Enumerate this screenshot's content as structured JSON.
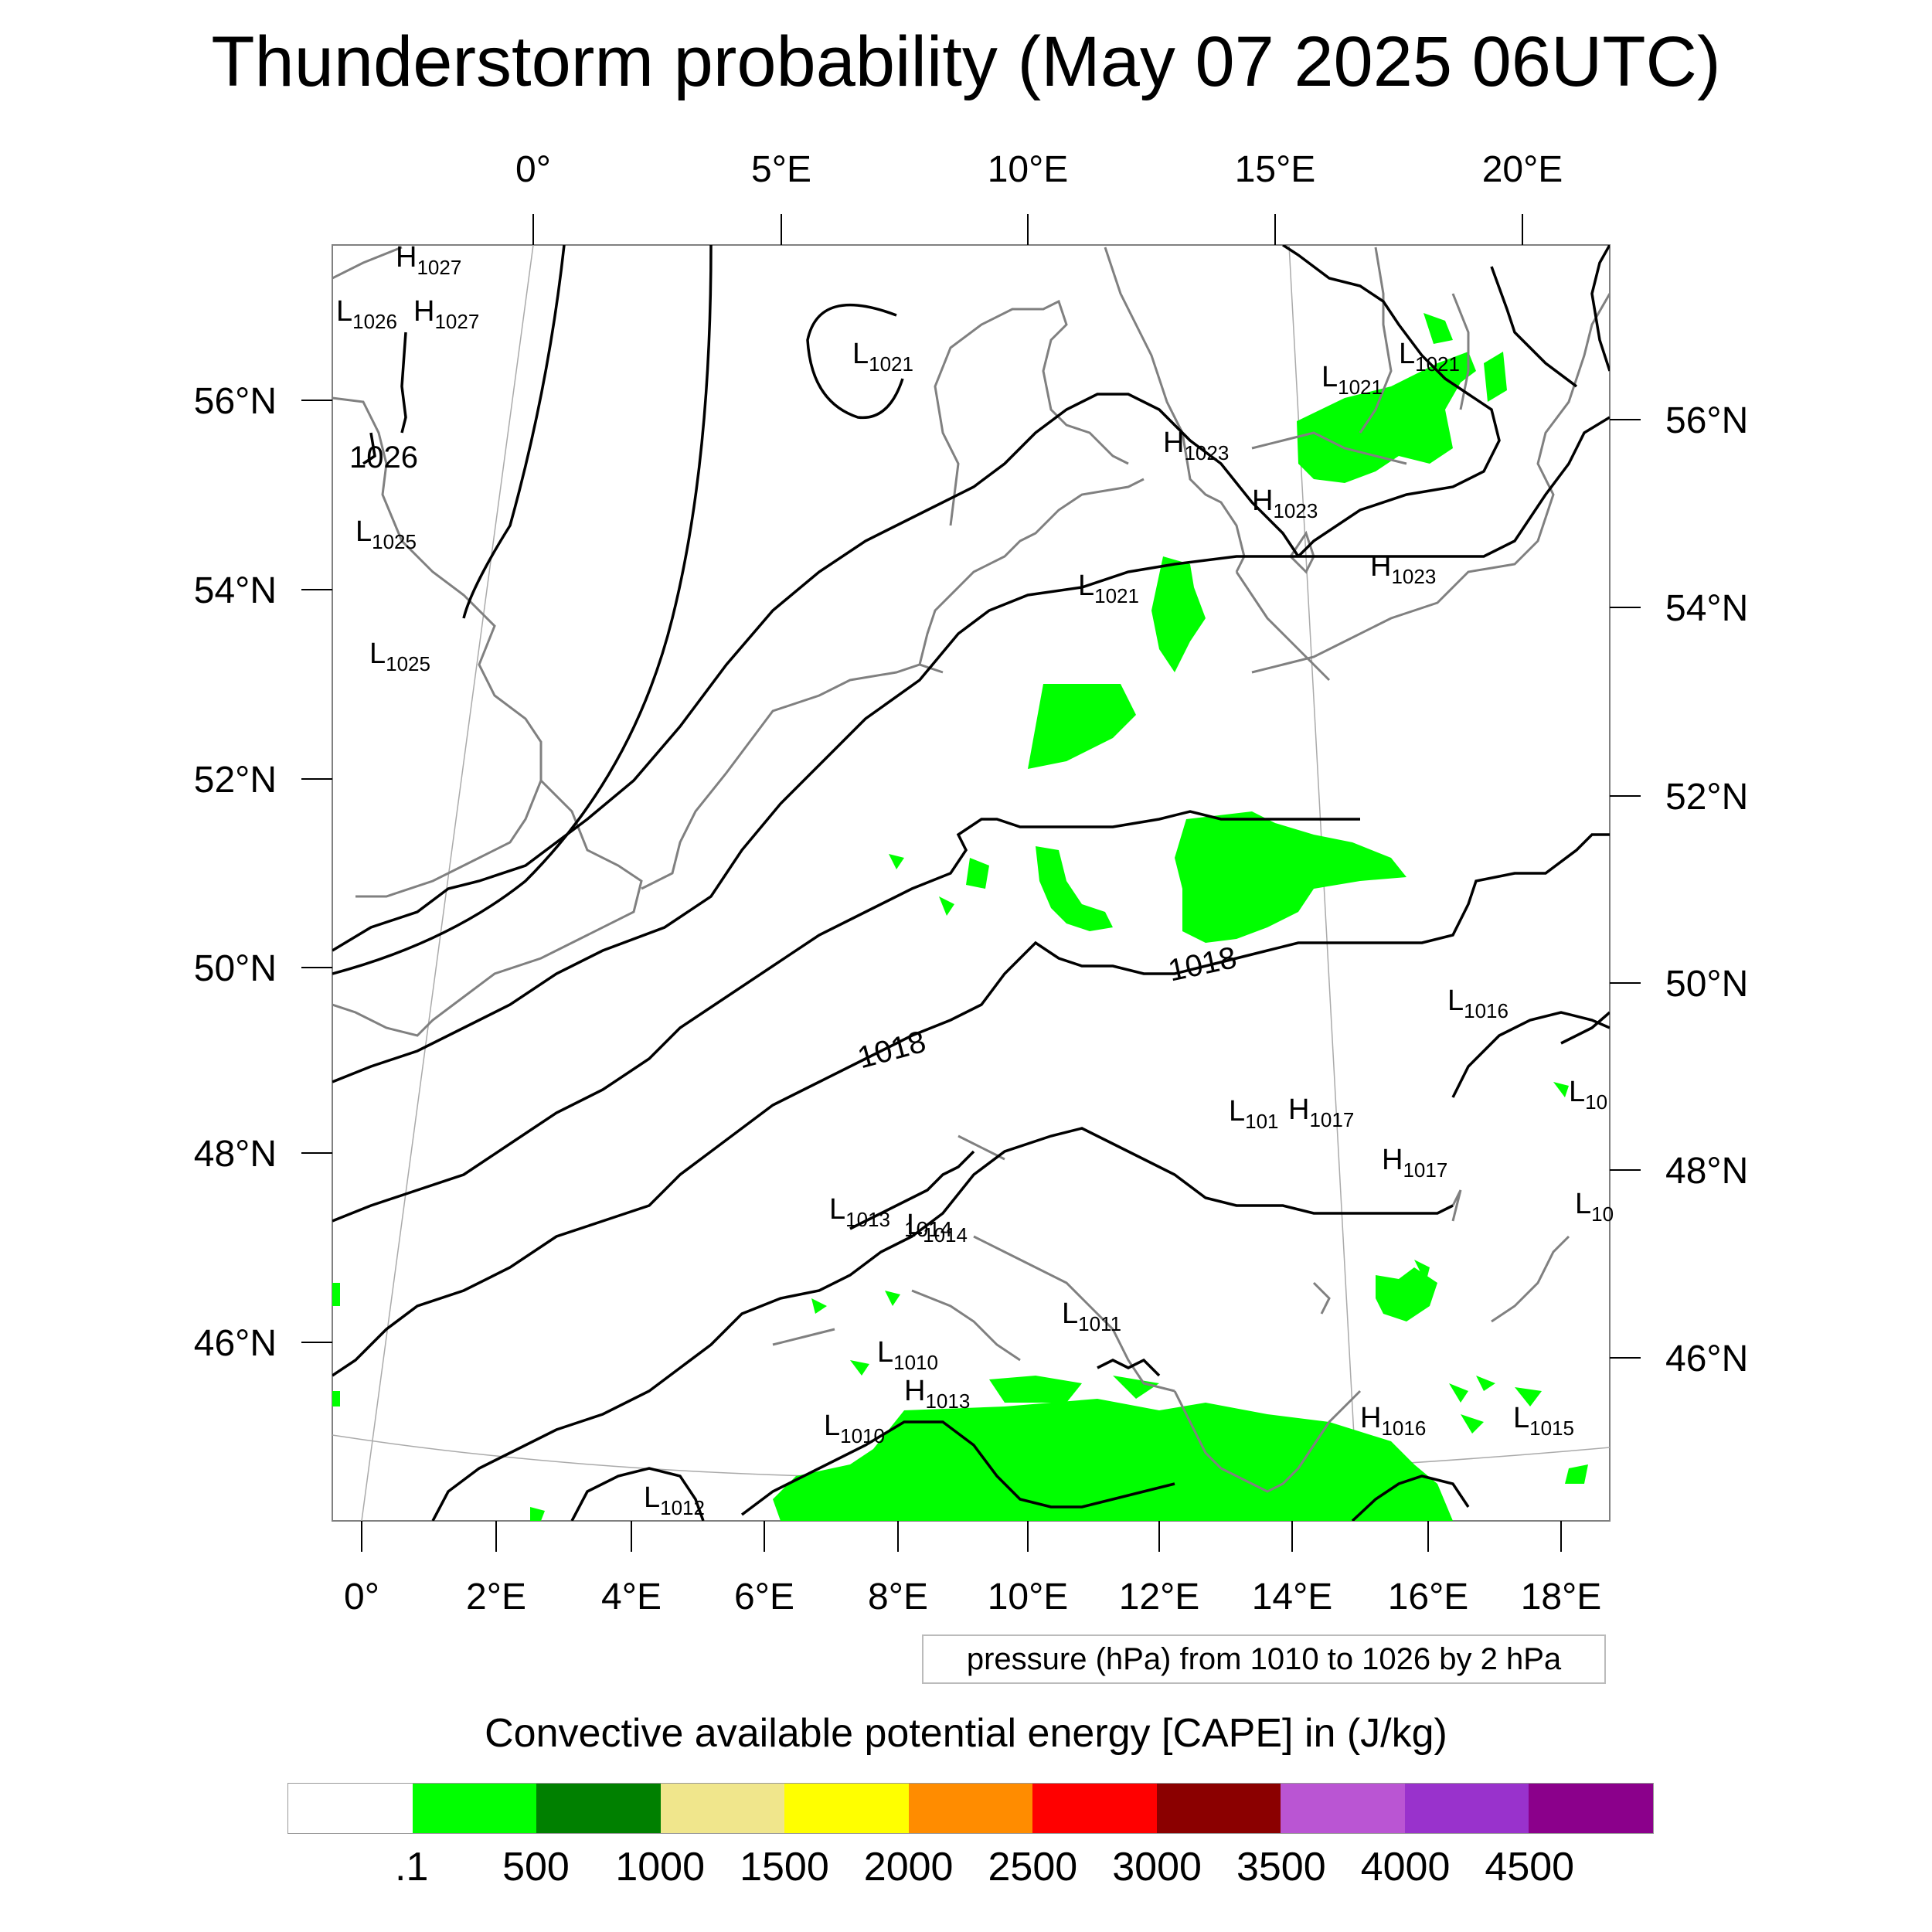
{
  "title": "Thunderstorm probability (May 07 2025 06UTC)",
  "top_lon_labels": [
    "0°",
    "5°E",
    "10°E",
    "15°E",
    "20°E"
  ],
  "bottom_lon_labels": [
    "0°",
    "2°E",
    "4°E",
    "6°E",
    "8°E",
    "10°E",
    "12°E",
    "14°E",
    "16°E",
    "18°E"
  ],
  "left_lat_labels": [
    "56°N",
    "54°N",
    "52°N",
    "50°N",
    "48°N",
    "46°N"
  ],
  "right_lat_labels": [
    "56°N",
    "54°N",
    "52°N",
    "50°N",
    "48°N",
    "46°N"
  ],
  "pressure_centers": [
    {
      "letter": "H",
      "value": "1027"
    },
    {
      "letter": "L",
      "value": "1026"
    },
    {
      "letter": "H",
      "value": "1027"
    },
    {
      "letter": "L",
      "value": "1021"
    },
    {
      "letter": "L",
      "value": "1025"
    },
    {
      "letter": "L",
      "value": "1025"
    },
    {
      "letter": "L",
      "value": "1021"
    },
    {
      "letter": "L",
      "value": "1021"
    },
    {
      "letter": "H",
      "value": "1023"
    },
    {
      "letter": "H",
      "value": "1023"
    },
    {
      "letter": "H",
      "value": "1023"
    },
    {
      "letter": "L",
      "value": "1021"
    },
    {
      "letter": "L",
      "value": "1016"
    },
    {
      "letter": "L",
      "value": "101"
    },
    {
      "letter": "H",
      "value": "1017"
    },
    {
      "letter": "H",
      "value": "1017"
    },
    {
      "letter": "L",
      "value": "10"
    },
    {
      "letter": "L",
      "value": "10"
    },
    {
      "letter": "L",
      "value": "1013"
    },
    {
      "letter": "L",
      "value": "1014"
    },
    {
      "letter": "L",
      "value": "1011"
    },
    {
      "letter": "L",
      "value": "1010"
    },
    {
      "letter": "H",
      "value": "1013"
    },
    {
      "letter": "L",
      "value": "1010"
    },
    {
      "letter": "H",
      "value": "1016"
    },
    {
      "letter": "L",
      "value": "1015"
    },
    {
      "letter": "L",
      "value": "1012"
    }
  ],
  "contour_labels": [
    "1026",
    "1018",
    "1018",
    "1014"
  ],
  "pressure_note": "pressure (hPa) from 1010 to 1026 by 2 hPa",
  "cape_title": "Convective available potential energy [CAPE] in (J/kg)",
  "colorbar": {
    "colors": [
      "#ffffff",
      "#00ff00",
      "#008000",
      "#f0e68c",
      "#ffff00",
      "#ff8c00",
      "#ff0000",
      "#8b0000",
      "#ba55d3",
      "#9932cc",
      "#8b008b"
    ],
    "labels": [
      ".1",
      "500",
      "1000",
      "1500",
      "2000",
      "2500",
      "3000",
      "3500",
      "4000",
      "4500"
    ]
  },
  "cape_fill_color": "#00ff00",
  "coastline_color": "#808080",
  "isobar_color": "#000000"
}
